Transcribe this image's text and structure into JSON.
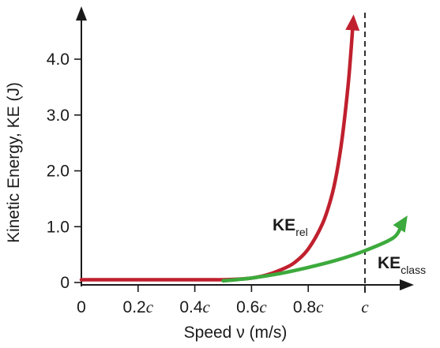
{
  "chart_data": {
    "type": "line",
    "xlabel": "Speed ν (m/s)",
    "ylabel": "Kinetic Energy, KE (J)",
    "xlim": [
      0,
      1.15
    ],
    "ylim": [
      0,
      4.8
    ],
    "x_ticks": [
      {
        "value": 0,
        "label": "0",
        "prefix": "0",
        "italic": ""
      },
      {
        "value": 0.2,
        "label": "0.2c",
        "prefix": "0.2",
        "italic": "c"
      },
      {
        "value": 0.4,
        "label": "0.4c",
        "prefix": "0.4",
        "italic": "c"
      },
      {
        "value": 0.6,
        "label": "0.6c",
        "prefix": "0.6",
        "italic": "c"
      },
      {
        "value": 0.8,
        "label": "0.8c",
        "prefix": "0.8",
        "italic": "c"
      },
      {
        "value": 1.0,
        "label": "c",
        "prefix": "",
        "italic": "c"
      }
    ],
    "y_ticks": [
      {
        "value": 0,
        "label": "0"
      },
      {
        "value": 1.0,
        "label": "1.0"
      },
      {
        "value": 2.0,
        "label": "2.0"
      },
      {
        "value": 3.0,
        "label": "3.0"
      },
      {
        "value": 4.0,
        "label": "4.0"
      }
    ],
    "asymptote": {
      "x": 1.0,
      "style": "dashed",
      "color": "#1a1a1a"
    },
    "series": [
      {
        "name": "KErel",
        "label_main": "KE",
        "label_sub": "rel",
        "color": "#c0202e",
        "x": [
          0,
          0.2,
          0.3,
          0.4,
          0.5,
          0.55,
          0.6,
          0.65,
          0.7,
          0.75,
          0.8,
          0.85,
          0.88,
          0.9,
          0.92,
          0.94,
          0.95,
          0.96
        ],
        "y": [
          0.05,
          0.05,
          0.05,
          0.05,
          0.05,
          0.06,
          0.08,
          0.13,
          0.22,
          0.35,
          0.6,
          1.05,
          1.5,
          1.95,
          2.6,
          3.5,
          4.1,
          4.8
        ]
      },
      {
        "name": "KEclass",
        "label_main": "KE",
        "label_sub": "class",
        "color": "#3caa3c",
        "x": [
          0.5,
          0.6,
          0.7,
          0.8,
          0.9,
          1.0,
          1.1,
          1.15
        ],
        "y": [
          0.03,
          0.08,
          0.16,
          0.27,
          0.4,
          0.57,
          0.8,
          1.2
        ]
      }
    ]
  }
}
